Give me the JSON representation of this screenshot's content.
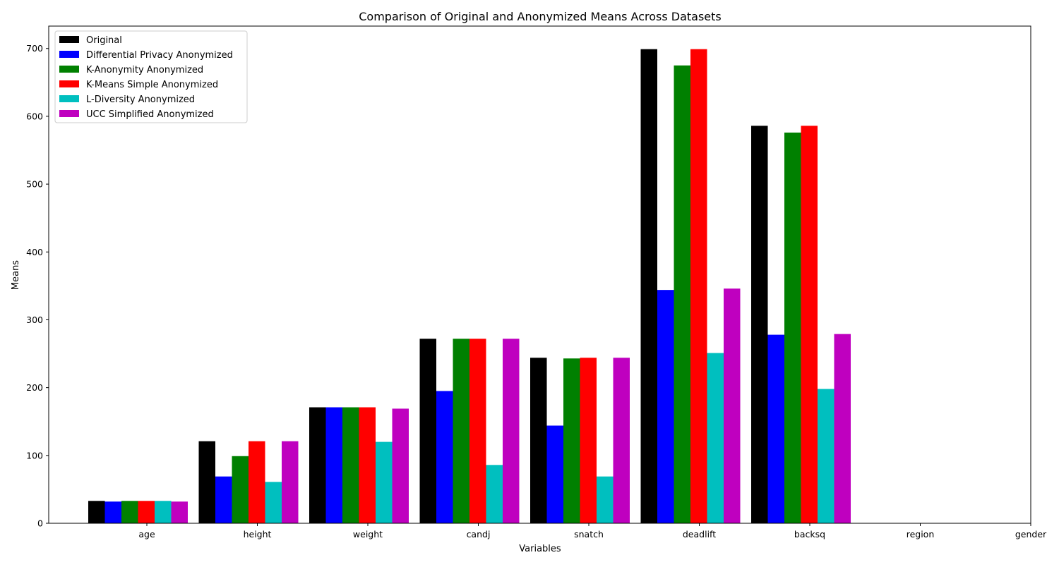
{
  "chart_data": {
    "type": "bar",
    "title": "Comparison of Original and Anonymized Means Across Datasets",
    "xlabel": "Variables",
    "ylabel": "Means",
    "categories": [
      "age",
      "height",
      "weight",
      "candj",
      "snatch",
      "deadlift",
      "backsq",
      "region",
      "gender"
    ],
    "ylim": [
      0,
      733
    ],
    "yticks": [
      0,
      100,
      200,
      300,
      400,
      500,
      600,
      700
    ],
    "legend_position": "top-left",
    "grid": false,
    "series": [
      {
        "name": "Original",
        "color": "#000000",
        "values": [
          33,
          121,
          171,
          272,
          244,
          699,
          586,
          0,
          0
        ]
      },
      {
        "name": "Differential Privacy Anonymized",
        "color": "#0000ff",
        "values": [
          32,
          69,
          171,
          195,
          144,
          344,
          278,
          0,
          0
        ]
      },
      {
        "name": "K-Anonymity Anonymized",
        "color": "#008000",
        "values": [
          33,
          99,
          171,
          272,
          243,
          675,
          576,
          0,
          0
        ]
      },
      {
        "name": "K-Means Simple Anonymized",
        "color": "#ff0000",
        "values": [
          33,
          121,
          171,
          272,
          244,
          699,
          586,
          0,
          0
        ]
      },
      {
        "name": "L-Diversity Anonymized",
        "color": "#00bfbf",
        "values": [
          33,
          61,
          120,
          86,
          69,
          251,
          198,
          0,
          0
        ]
      },
      {
        "name": "UCC Simplified Anonymized",
        "color": "#bf00bf",
        "values": [
          32,
          121,
          169,
          272,
          244,
          346,
          279,
          0,
          0
        ]
      }
    ]
  }
}
